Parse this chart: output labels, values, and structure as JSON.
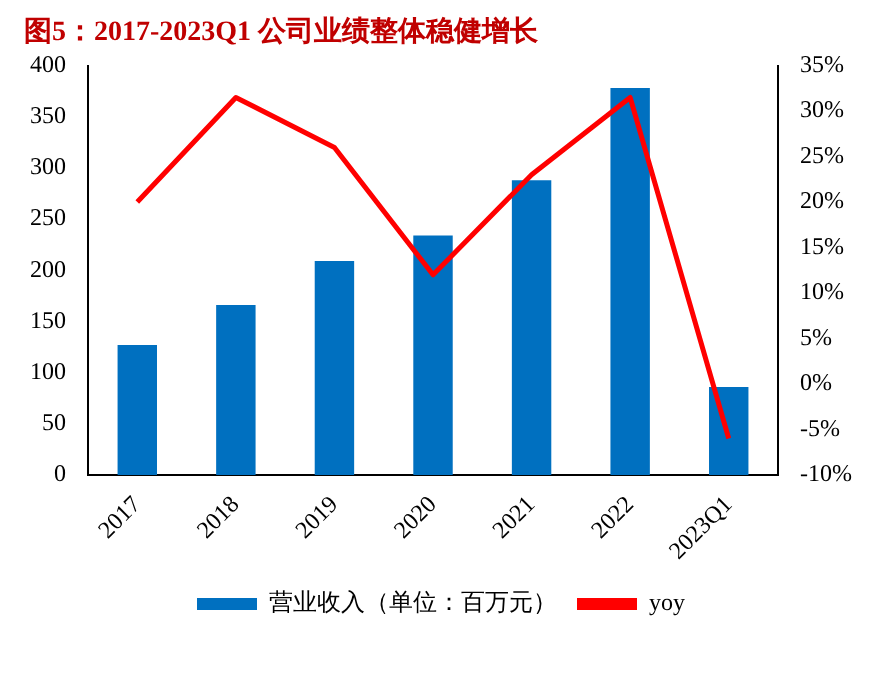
{
  "chart_data": {
    "type": "bar",
    "title": "图5：2017-2023Q1 公司业绩整体稳健增长",
    "categories": [
      "2017",
      "2018",
      "2019",
      "2020",
      "2021",
      "2022",
      "2023Q1"
    ],
    "series": [
      {
        "name": "营业收入（单位：百万元）",
        "color": "#0070c0",
        "values": [
          127,
          166,
          209,
          234,
          288,
          378,
          86
        ]
      },
      {
        "name": "yoy",
        "type": "line",
        "axis": "y2",
        "color": "#ff0000",
        "values": [
          20,
          31.5,
          26,
          12,
          23,
          31.5,
          -6
        ]
      }
    ],
    "ylim": [
      0,
      400
    ],
    "yticks": [
      0,
      50,
      100,
      150,
      200,
      250,
      300,
      350,
      400
    ],
    "y2lim": [
      -10,
      35
    ],
    "y2ticks": [
      {
        "value": -10,
        "label": "-10%"
      },
      {
        "value": -5,
        "label": "-5%"
      },
      {
        "value": 0,
        "label": "0%"
      },
      {
        "value": 5,
        "label": "5%"
      },
      {
        "value": 10,
        "label": "10%"
      },
      {
        "value": 15,
        "label": "15%"
      },
      {
        "value": 20,
        "label": "20%"
      },
      {
        "value": 25,
        "label": "25%"
      },
      {
        "value": 30,
        "label": "30%"
      },
      {
        "value": 35,
        "label": "35%"
      }
    ],
    "grid": false,
    "legend": "bottom",
    "marker": "none"
  }
}
